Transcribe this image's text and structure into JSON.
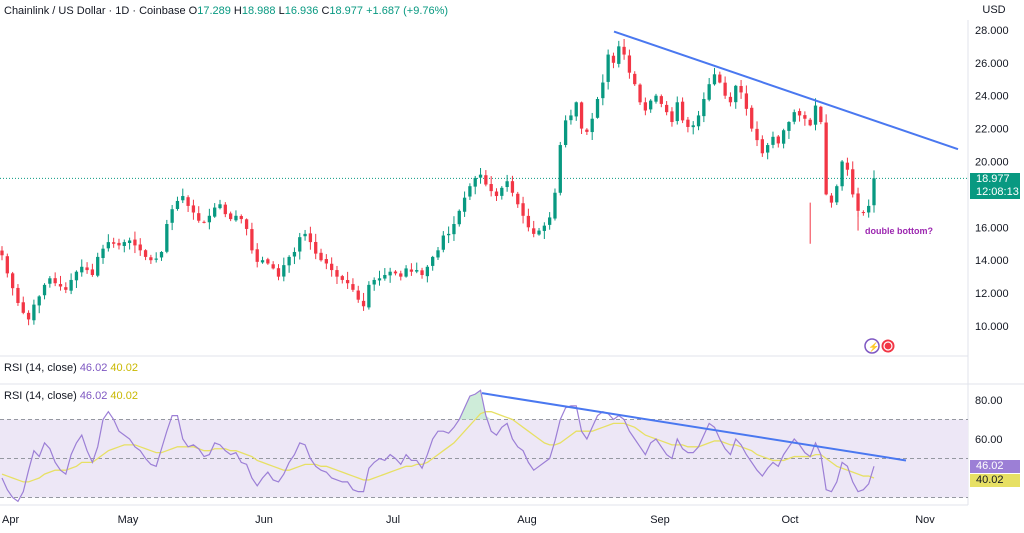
{
  "header": {
    "symbol": "Chainlink / US Dollar · 1D · Coinbase",
    "o_label": "O",
    "o_value": "17.289",
    "h_label": "H",
    "h_value": "18.988",
    "l_label": "L",
    "l_value": "16.936",
    "c_label": "C",
    "c_value": "18.977",
    "change": "+1.687 (+9.76%)"
  },
  "currency": "USD",
  "price_tag": {
    "price": "18.977",
    "countdown": "12:08:13"
  },
  "annotation": "double bottom?",
  "rsi": {
    "title": "RSI (14, close)",
    "value1": "46.02",
    "value2": "40.02",
    "tag1": "46.02",
    "tag2": "40.02"
  },
  "colors": {
    "up": "#089981",
    "down": "#f23645",
    "trendline": "#4a78f0",
    "rsi_line": "#9c7fd6",
    "rsi_ma": "#e7e064",
    "rsi_band": "#ede7f6",
    "annotation": "#9c27b0"
  },
  "chart_data": [
    {
      "type": "candlestick",
      "title": "Chainlink / US Dollar · 1D · Coinbase",
      "ylabel": "USD",
      "ylim": [
        9,
        29
      ],
      "y_ticks": [
        "10.000",
        "12.000",
        "14.000",
        "16.000",
        "18.000",
        "20.000",
        "22.000",
        "24.000",
        "26.000",
        "28.000"
      ],
      "x_ticks": [
        "Apr",
        "May",
        "Jun",
        "Jul",
        "Aug",
        "Sep",
        "Oct",
        "Nov"
      ],
      "last_close": 18.977,
      "series": [
        {
          "name": "close",
          "values": [
            14.3,
            13.2,
            12.3,
            11.4,
            10.8,
            10.4,
            11.3,
            11.8,
            12.5,
            12.9,
            12.6,
            12.4,
            12.2,
            12.8,
            13.3,
            13.6,
            13.4,
            13.1,
            14.2,
            14.7,
            15.1,
            15.0,
            14.9,
            15.1,
            15.2,
            14.9,
            14.6,
            14.2,
            14.0,
            14.1,
            14.5,
            16.2,
            17.1,
            17.6,
            17.9,
            17.3,
            16.9,
            16.4,
            16.3,
            16.7,
            17.2,
            17.4,
            16.8,
            16.5,
            16.7,
            16.5,
            15.9,
            14.6,
            13.9,
            14.0,
            13.8,
            13.5,
            13.0,
            13.7,
            14.2,
            14.5,
            15.4,
            15.6,
            15.1,
            14.4,
            14.0,
            13.8,
            13.4,
            13.0,
            12.8,
            12.6,
            12.2,
            11.6,
            11.2,
            12.5,
            12.8,
            12.9,
            13.1,
            13.3,
            13.2,
            13.0,
            13.5,
            13.3,
            13.4,
            13.1,
            13.6,
            14.2,
            14.6,
            15.5,
            15.6,
            16.2,
            17.0,
            17.8,
            18.5,
            19.0,
            19.2,
            18.6,
            18.2,
            17.9,
            18.4,
            18.8,
            18.1,
            17.4,
            16.7,
            16.0,
            15.6,
            15.8,
            16.1,
            16.6,
            18.1,
            21.0,
            22.5,
            22.8,
            23.6,
            22.0,
            21.8,
            22.6,
            23.8,
            24.8,
            26.5,
            26.0,
            27.0,
            26.5,
            25.4,
            24.7,
            23.6,
            23.1,
            23.7,
            24.0,
            23.5,
            23.0,
            22.4,
            23.6,
            22.5,
            22.1,
            22.2,
            22.8,
            23.8,
            24.7,
            25.3,
            24.8,
            24.0,
            23.6,
            24.6,
            24.2,
            23.2,
            22.0,
            21.3,
            20.5,
            21.0,
            21.5,
            21.1,
            21.9,
            22.4,
            23.0,
            22.8,
            22.6,
            22.2,
            23.4,
            22.4,
            18.0,
            17.5,
            18.5,
            20.0,
            19.5,
            18.0,
            17.0,
            16.9,
            17.3,
            18.977
          ]
        }
      ]
    },
    {
      "type": "line",
      "title": "RSI (14, close)",
      "ylim": [
        25,
        90
      ],
      "y_ticks": [
        "60.00",
        "80.00"
      ],
      "bands": [
        30,
        50,
        70
      ],
      "series": [
        {
          "name": "RSI",
          "values": [
            40,
            34,
            30,
            28,
            33,
            44,
            54,
            51,
            58,
            55,
            48,
            44,
            42,
            52,
            58,
            62,
            54,
            48,
            56,
            70,
            74,
            70,
            64,
            62,
            60,
            56,
            54,
            50,
            47,
            46,
            55,
            64,
            72,
            72,
            60,
            56,
            57,
            55,
            51,
            52,
            58,
            57,
            54,
            52,
            53,
            48,
            47,
            40,
            36,
            40,
            43,
            39,
            38,
            42,
            48,
            52,
            58,
            57,
            50,
            46,
            44,
            43,
            40,
            39,
            38,
            38,
            34,
            33,
            33,
            45,
            48,
            50,
            49,
            52,
            50,
            47,
            52,
            49,
            49,
            45,
            52,
            60,
            64,
            64,
            63,
            66,
            70,
            76,
            82,
            83,
            85,
            72,
            64,
            62,
            66,
            68,
            60,
            56,
            54,
            48,
            44,
            46,
            48,
            50,
            59,
            70,
            76,
            77,
            77,
            64,
            60,
            66,
            72,
            74,
            73,
            70,
            72,
            70,
            64,
            60,
            56,
            52,
            58,
            60,
            56,
            52,
            50,
            60,
            55,
            53,
            53,
            56,
            62,
            68,
            66,
            60,
            55,
            52,
            60,
            57,
            52,
            48,
            44,
            41,
            45,
            48,
            46,
            52,
            56,
            60,
            57,
            53,
            51,
            58,
            52,
            34,
            33,
            38,
            48,
            46,
            38,
            33,
            34,
            37,
            46.02
          ]
        },
        {
          "name": "RSI-based MA",
          "values": [
            42,
            41,
            40,
            39,
            38,
            38,
            39,
            40,
            42,
            43,
            44,
            44,
            44,
            45,
            46,
            48,
            48,
            48,
            50,
            52,
            54,
            55,
            56,
            57,
            57,
            57,
            56,
            55,
            54,
            53,
            53,
            54,
            55,
            56,
            56,
            56,
            56,
            55,
            54,
            54,
            55,
            55,
            55,
            54,
            54,
            53,
            52,
            51,
            49,
            48,
            47,
            46,
            45,
            44,
            44,
            45,
            46,
            47,
            47,
            47,
            46,
            46,
            45,
            44,
            43,
            42,
            41,
            40,
            39,
            39,
            40,
            41,
            42,
            43,
            44,
            45,
            46,
            46,
            47,
            47,
            48,
            50,
            52,
            54,
            56,
            58,
            61,
            64,
            67,
            70,
            73,
            74,
            74,
            73,
            72,
            71,
            70,
            68,
            66,
            64,
            62,
            60,
            58,
            57,
            57,
            58,
            60,
            62,
            64,
            64,
            64,
            64,
            65,
            66,
            67,
            68,
            68,
            68,
            67,
            66,
            64,
            62,
            61,
            60,
            59,
            58,
            57,
            57,
            57,
            56,
            56,
            56,
            57,
            58,
            59,
            59,
            58,
            57,
            57,
            56,
            55,
            54,
            52,
            51,
            50,
            49,
            49,
            49,
            50,
            51,
            51,
            51,
            51,
            52,
            52,
            50,
            48,
            46,
            45,
            44,
            43,
            42,
            41,
            41,
            40.02
          ]
        }
      ]
    }
  ]
}
